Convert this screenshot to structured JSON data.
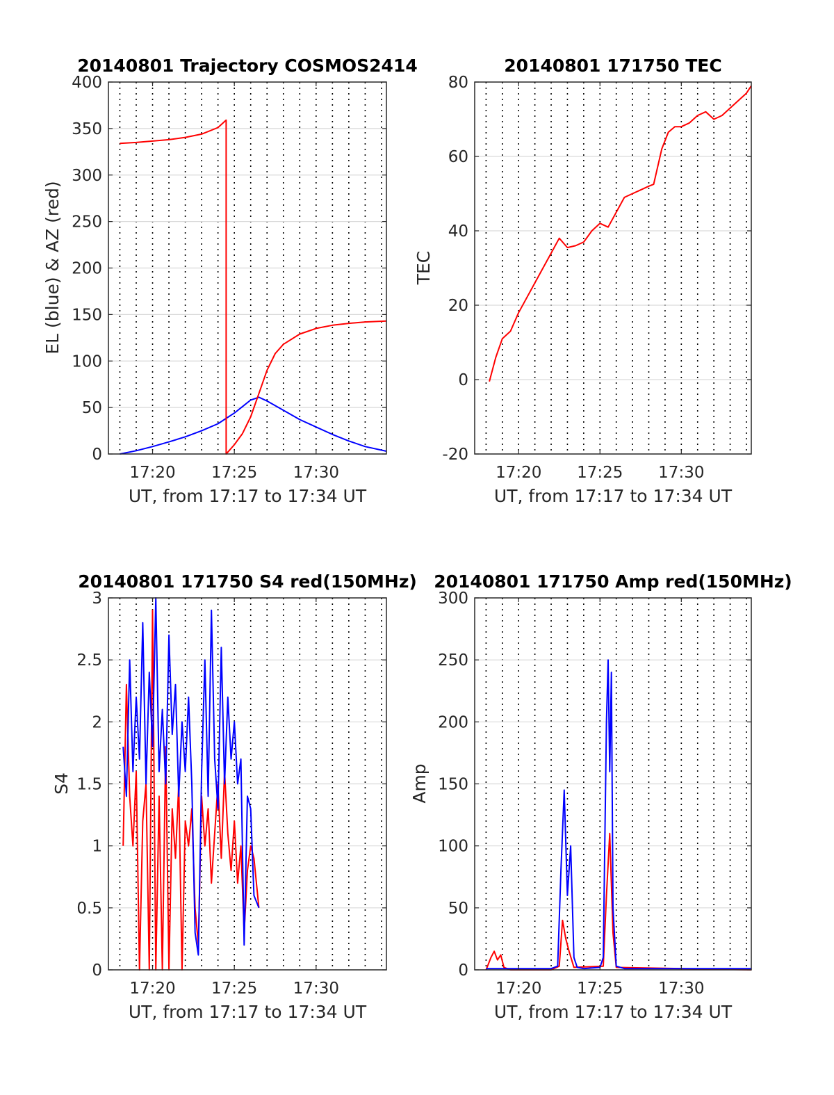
{
  "chart_data": [
    {
      "type": "line",
      "title": "20140801 Trajectory COSMOS2414",
      "xlabel": "UT, from 17:17 to 17:34 UT",
      "ylabel": "EL (blue) & AZ (red)",
      "xlim": [
        17.3,
        34.3
      ],
      "ylim": [
        0,
        400
      ],
      "xticks": [
        20,
        25,
        30
      ],
      "xtick_labels": [
        "17:20",
        "17:25",
        "17:30"
      ],
      "yticks": [
        0,
        50,
        100,
        150,
        200,
        250,
        300,
        350,
        400
      ],
      "ytick_labels": [
        "0",
        "50",
        "100",
        "150",
        "200",
        "250",
        "300",
        "350",
        "400"
      ],
      "grid": true,
      "series": [
        {
          "color": "#0000ff",
          "x": [
            18.0,
            19.0,
            20.0,
            21.0,
            22.0,
            23.0,
            24.0,
            25.0,
            25.5,
            26.0,
            26.5,
            27.0,
            28.0,
            29.0,
            30.0,
            31.0,
            32.0,
            33.0,
            34.3
          ],
          "y": [
            0,
            3.5,
            8,
            13,
            18.5,
            25,
            32.5,
            44,
            51,
            58,
            61,
            57,
            47,
            37,
            29,
            21,
            14,
            8,
            3
          ]
        },
        {
          "color": "#ff0000",
          "x": [
            18.0,
            19.0,
            20.0,
            21.0,
            22.0,
            23.0,
            24.0,
            24.5,
            24.5,
            24.6,
            25.0,
            25.5,
            26.0,
            26.5,
            27.0,
            27.5,
            28.0,
            29.0,
            30.0,
            31.0,
            32.0,
            33.0,
            34.3
          ],
          "y": [
            334,
            335,
            336.5,
            338,
            340.5,
            344,
            351,
            359,
            0,
            2,
            10,
            22,
            40,
            65,
            90,
            108,
            118,
            129,
            135,
            138.5,
            140.5,
            142,
            143
          ]
        }
      ]
    },
    {
      "type": "line",
      "title": "20140801 171750 TEC",
      "xlabel": "UT, from 17:17 to 17:34 UT",
      "ylabel": "TEC",
      "xlim": [
        17.3,
        34.3
      ],
      "ylim": [
        -20,
        80
      ],
      "xticks": [
        20,
        25,
        30
      ],
      "xtick_labels": [
        "17:20",
        "17:25",
        "17:30"
      ],
      "yticks": [
        -20,
        0,
        20,
        40,
        60,
        80
      ],
      "ytick_labels": [
        "-20",
        "0",
        "20",
        "40",
        "60",
        "80"
      ],
      "grid": true,
      "series": [
        {
          "color": "#ff0000",
          "x": [
            18.2,
            18.6,
            19.0,
            19.5,
            20.0,
            20.5,
            21.0,
            21.5,
            22.0,
            22.5,
            23.0,
            23.5,
            24.0,
            24.5,
            25.0,
            25.5,
            26.0,
            26.5,
            27.0,
            27.5,
            28.0,
            28.3,
            28.8,
            29.2,
            29.6,
            30.0,
            30.5,
            31.0,
            31.5,
            32.0,
            32.5,
            33.0,
            33.5,
            34.0,
            34.3
          ],
          "y": [
            -0.5,
            6,
            11,
            13,
            18,
            22,
            26,
            30,
            34,
            38,
            35.5,
            36,
            37,
            40,
            42,
            41,
            45,
            49,
            50,
            51,
            52,
            52.5,
            62,
            66.5,
            68,
            68,
            69,
            71,
            72,
            70,
            71,
            73,
            75,
            77,
            79
          ]
        }
      ]
    },
    {
      "type": "line",
      "title": "20140801 171750 S4 red(150MHz)",
      "xlabel": "UT, from 17:17 to 17:34 UT",
      "ylabel": "S4",
      "xlim": [
        17.3,
        34.3
      ],
      "ylim": [
        0,
        3
      ],
      "xticks": [
        20,
        25,
        30
      ],
      "xtick_labels": [
        "17:20",
        "17:25",
        "17:30"
      ],
      "yticks": [
        0,
        0.5,
        1,
        1.5,
        2,
        2.5,
        3
      ],
      "ytick_labels": [
        "0",
        "0.5",
        "1",
        "1.5",
        "2",
        "2.5",
        "3"
      ],
      "grid": true,
      "series": [
        {
          "color": "#ff0000",
          "x": [
            18.2,
            18.4,
            18.6,
            18.8,
            19.0,
            19.2,
            19.4,
            19.6,
            19.8,
            20.0,
            20.2,
            20.4,
            20.6,
            20.8,
            21.0,
            21.2,
            21.4,
            21.6,
            21.8,
            22.0,
            22.2,
            22.4,
            22.6,
            22.8,
            23.0,
            23.2,
            23.4,
            23.6,
            23.8,
            24.0,
            24.2,
            24.4,
            24.6,
            24.8,
            25.0,
            25.2,
            25.4,
            25.6,
            25.8,
            26.0,
            26.2,
            26.5
          ],
          "y": [
            1.0,
            2.3,
            1.4,
            1.0,
            1.6,
            0.0,
            1.2,
            1.5,
            0.0,
            2.9,
            0.0,
            1.4,
            0.0,
            1.8,
            0.0,
            1.3,
            0.9,
            1.5,
            0.0,
            1.2,
            1.0,
            1.3,
            0.5,
            0.2,
            1.4,
            1.0,
            1.3,
            0.7,
            1.1,
            1.5,
            0.9,
            1.6,
            1.1,
            0.8,
            1.2,
            0.7,
            1.0,
            0.3,
            0.8,
            1.0,
            0.9,
            0.5
          ]
        },
        {
          "color": "#0000ff",
          "x": [
            18.2,
            18.4,
            18.6,
            18.8,
            19.0,
            19.2,
            19.4,
            19.6,
            19.8,
            20.0,
            20.2,
            20.4,
            20.6,
            20.8,
            21.0,
            21.2,
            21.4,
            21.6,
            21.8,
            22.0,
            22.2,
            22.4,
            22.6,
            22.8,
            23.0,
            23.2,
            23.4,
            23.6,
            23.8,
            24.0,
            24.2,
            24.4,
            24.6,
            24.8,
            25.0,
            25.2,
            25.4,
            25.6,
            25.8,
            26.0,
            26.2,
            26.5
          ],
          "y": [
            1.8,
            1.4,
            2.5,
            1.6,
            2.2,
            1.7,
            2.8,
            1.5,
            2.4,
            1.8,
            3.0,
            1.6,
            2.1,
            1.5,
            2.7,
            1.9,
            2.3,
            1.4,
            2.0,
            1.6,
            2.2,
            1.5,
            0.3,
            0.12,
            1.6,
            2.5,
            1.4,
            2.9,
            1.7,
            1.3,
            2.6,
            1.5,
            2.2,
            1.7,
            2.0,
            1.5,
            1.7,
            0.2,
            1.4,
            1.3,
            0.6,
            0.5
          ]
        }
      ]
    },
    {
      "type": "line",
      "title": "20140801 171750 Amp red(150MHz)",
      "xlabel": "UT, from 17:17 to 17:34 UT",
      "ylabel": "Amp",
      "xlim": [
        17.3,
        34.3
      ],
      "ylim": [
        0,
        300
      ],
      "xticks": [
        20,
        25,
        30
      ],
      "xtick_labels": [
        "17:20",
        "17:25",
        "17:30"
      ],
      "yticks": [
        0,
        50,
        100,
        150,
        200,
        250,
        300
      ],
      "ytick_labels": [
        "0",
        "50",
        "100",
        "150",
        "200",
        "250",
        "300"
      ],
      "grid": true,
      "series": [
        {
          "color": "#ff0000",
          "x": [
            18.0,
            18.3,
            18.5,
            18.7,
            18.9,
            19.1,
            19.5,
            22.0,
            22.5,
            22.7,
            22.9,
            23.1,
            23.4,
            25.2,
            25.4,
            25.6,
            25.8,
            26.0,
            34.3
          ],
          "y": [
            0,
            10,
            15,
            8,
            12,
            2,
            0,
            0,
            3,
            40,
            25,
            15,
            2,
            3,
            60,
            110,
            30,
            2,
            0
          ]
        },
        {
          "color": "#0000ff",
          "x": [
            18.0,
            19.0,
            20.0,
            21.0,
            22.0,
            22.4,
            22.6,
            22.8,
            23.0,
            23.2,
            23.4,
            23.6,
            24.0,
            25.0,
            25.2,
            25.4,
            25.5,
            25.6,
            25.7,
            25.8,
            26.0,
            26.5,
            27.0,
            28.0,
            30.0,
            32.0,
            34.3
          ],
          "y": [
            1,
            1,
            1,
            1,
            1,
            3,
            80,
            145,
            60,
            100,
            10,
            2,
            1,
            2,
            10,
            200,
            250,
            160,
            240,
            50,
            3,
            1,
            1,
            1,
            1,
            1,
            1
          ]
        }
      ]
    }
  ]
}
